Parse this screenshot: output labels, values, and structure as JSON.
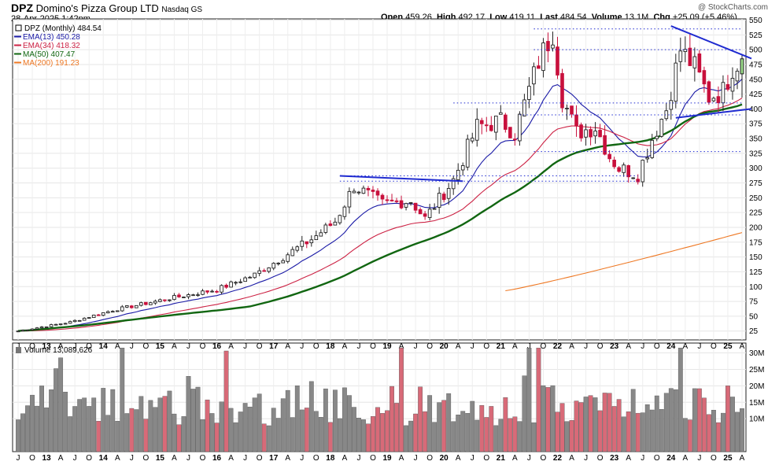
{
  "header": {
    "symbol": "DPZ",
    "company": "Domino's Pizza Group LTD",
    "exchange": "Nasdaq GS",
    "date": "28-Apr-2025 1:42pm",
    "watermark": "@ StockCharts.com",
    "open_label": "Open",
    "open": "459.26",
    "high_label": "High",
    "high": "492.17",
    "low_label": "Low",
    "low": "419.11",
    "last_label": "Last",
    "last": "484.54",
    "volume_label": "Volume",
    "volume": "13.1M",
    "chg_label": "Chg",
    "chg": "+25.09 (+5.46%)"
  },
  "legend": [
    {
      "name": "DPZ (Monthly) 484.54",
      "color": "#000000"
    },
    {
      "name": "EMA(13) 450.28",
      "color": "#1a1aa6"
    },
    {
      "name": "EMA(34) 418.32",
      "color": "#cc2244"
    },
    {
      "name": "MA(50) 407.47",
      "color": "#116611"
    },
    {
      "name": "MA(200) 191.23",
      "color": "#ee7722"
    }
  ],
  "volume_legend": "Volume 13,089,626",
  "colors": {
    "up": "#222222",
    "down": "#c8103c",
    "vol_up": "#888888",
    "vol_down": "#d86a78",
    "trendline": "#1f2bd0"
  },
  "chart_data": {
    "type": "candlestick",
    "interval": "monthly",
    "start": "2012-07",
    "end": "2025-04",
    "price_axis": {
      "ticks": [
        25,
        50,
        75,
        100,
        125,
        150,
        175,
        200,
        225,
        250,
        275,
        300,
        325,
        350,
        375,
        400,
        425,
        450,
        475,
        500,
        525,
        550
      ],
      "range": [
        10,
        552
      ]
    },
    "volume_axis": {
      "ticks": [
        "10M",
        "15M",
        "20M",
        "25M",
        "30M"
      ],
      "tick_values": [
        10,
        15,
        20,
        25,
        30
      ],
      "range": [
        0,
        33
      ]
    },
    "x_ticks": [
      "J",
      "O",
      "13",
      "A",
      "J",
      "O",
      "14",
      "A",
      "J",
      "O",
      "15",
      "A",
      "J",
      "O",
      "16",
      "A",
      "J",
      "O",
      "17",
      "A",
      "J",
      "O",
      "18",
      "A",
      "J",
      "O",
      "19",
      "A",
      "J",
      "O",
      "20",
      "A",
      "J",
      "O",
      "21",
      "A",
      "J",
      "O",
      "22",
      "A",
      "J",
      "O",
      "23",
      "A",
      "J",
      "O",
      "24",
      "A",
      "J",
      "O",
      "25",
      "A"
    ],
    "trend_anchors": [
      [
        "2012-07",
        25
      ],
      [
        "2013-06",
        40
      ],
      [
        "2014-03",
        60
      ],
      [
        "2015-03",
        80
      ],
      [
        "2016-01",
        95
      ],
      [
        "2016-09",
        120
      ],
      [
        "2017-03",
        150
      ],
      [
        "2017-09",
        180
      ],
      [
        "2018-02",
        210
      ],
      [
        "2018-06",
        270
      ],
      [
        "2018-12",
        240
      ],
      [
        "2019-06",
        245
      ],
      [
        "2019-09",
        215
      ],
      [
        "2020-03",
        280
      ],
      [
        "2020-08",
        370
      ],
      [
        "2021-01",
        380
      ],
      [
        "2021-04",
        360
      ],
      [
        "2021-09",
        480
      ],
      [
        "2021-12",
        530
      ],
      [
        "2022-02",
        420
      ],
      [
        "2022-05",
        360
      ],
      [
        "2022-09",
        370
      ],
      [
        "2022-12",
        320
      ],
      [
        "2023-02",
        300
      ],
      [
        "2023-06",
        290
      ],
      [
        "2023-09",
        350
      ],
      [
        "2023-12",
        400
      ],
      [
        "2024-03",
        500
      ],
      [
        "2024-06",
        470
      ],
      [
        "2024-09",
        420
      ],
      [
        "2024-12",
        430
      ],
      [
        "2025-02",
        470
      ],
      [
        "2025-04",
        484.54
      ]
    ],
    "last_bar": {
      "open": 459.26,
      "high": 492.17,
      "low": 419.11,
      "close": 484.54
    },
    "reference_levels": [
      {
        "price": 535,
        "from": "2021-08",
        "to": "2025-04"
      },
      {
        "price": 500,
        "from": "2021-08",
        "to": "2025-04"
      },
      {
        "price": 410,
        "from": "2020-03",
        "to": "2025-04"
      },
      {
        "price": 390,
        "from": "2021-05",
        "to": "2025-04"
      },
      {
        "price": 328,
        "from": "2021-08",
        "to": "2025-04"
      },
      {
        "price": 287,
        "from": "2018-03",
        "to": "2023-06"
      },
      {
        "price": 278,
        "from": "2018-03",
        "to": "2023-06"
      }
    ],
    "trendlines": [
      {
        "from": [
          "2018-03",
          287
        ],
        "to": [
          "2020-05",
          278
        ]
      },
      {
        "from": [
          "2024-01",
          540
        ],
        "to": [
          "2025-06",
          485
        ]
      },
      {
        "from": [
          "2024-02",
          385
        ],
        "to": [
          "2025-06",
          400
        ]
      }
    ],
    "indicators": [
      {
        "name": "EMA(13)",
        "kind": "ema",
        "period": 13,
        "last": 450.28
      },
      {
        "name": "EMA(34)",
        "kind": "ema",
        "period": 34,
        "last": 418.32
      },
      {
        "name": "MA(50)",
        "kind": "sma",
        "period": 50,
        "last": 407.47
      },
      {
        "name": "MA(200)",
        "kind": "sma",
        "period": 200,
        "last": 191.23,
        "starts": "2021-02",
        "start_value": 93
      }
    ],
    "volume_base_millions": 14,
    "volume_last_millions": 13.1
  }
}
